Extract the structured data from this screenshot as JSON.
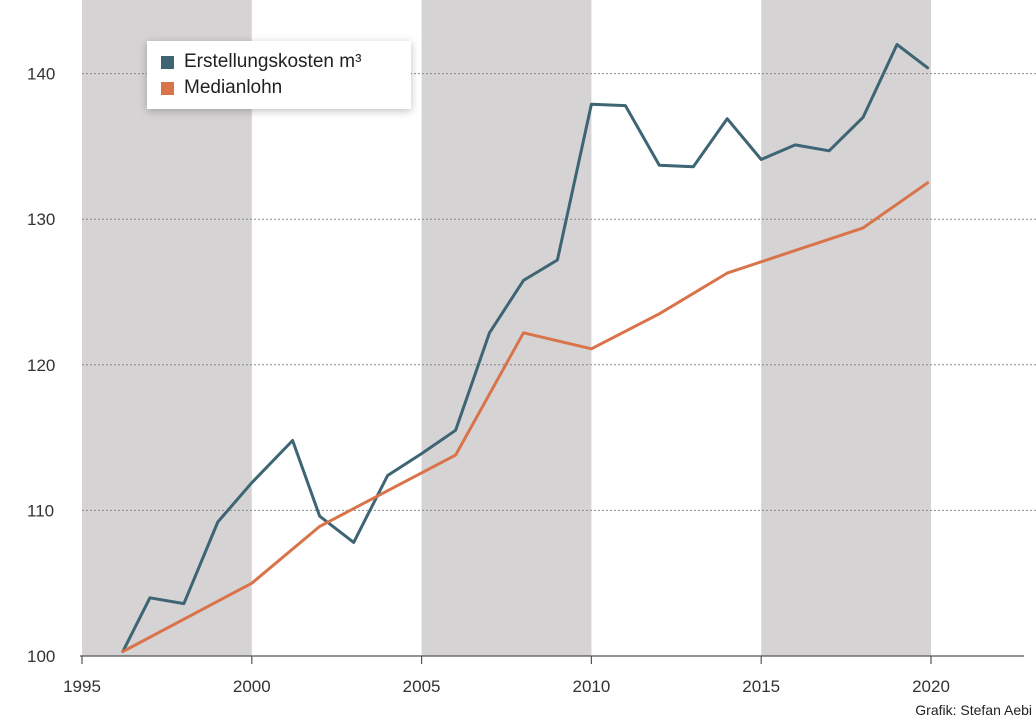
{
  "chart_data": {
    "type": "line",
    "title": "",
    "xlabel": "",
    "ylabel": "",
    "xlim": [
      1994.8,
      2022.5
    ],
    "ylim": [
      100,
      145
    ],
    "x_ticks": [
      1995,
      2000,
      2005,
      2010,
      2015,
      2020
    ],
    "x_tick_labels": [
      "1995",
      "2000",
      "2005",
      "2010",
      "2015",
      "2020"
    ],
    "y_ticks": [
      100,
      110,
      120,
      130,
      140
    ],
    "y_tick_labels": [
      "100",
      "110",
      "120",
      "130",
      "140"
    ],
    "grid": "horizontal dotted",
    "shaded_bands": [
      [
        1995,
        2000
      ],
      [
        2005,
        2010
      ],
      [
        2015,
        2020
      ]
    ],
    "legend": {
      "position": "top-left"
    },
    "series": [
      {
        "name": "Erstellungskosten m³",
        "color": "#3d6573",
        "x": [
          1996.2,
          1997,
          1998,
          1999,
          2000,
          2001.2,
          2002,
          2003,
          2004,
          2005,
          2006,
          2007,
          2008,
          2009,
          2010,
          2011,
          2012,
          2013,
          2014,
          2015,
          2016,
          2017,
          2018,
          2019,
          2019.9
        ],
        "y": [
          100.3,
          104.0,
          103.6,
          109.2,
          111.9,
          114.8,
          109.6,
          107.8,
          112.4,
          113.9,
          115.5,
          122.2,
          125.8,
          127.2,
          137.9,
          137.8,
          133.7,
          133.6,
          136.9,
          134.1,
          135.1,
          134.7,
          137.0,
          142.0,
          140.4
        ]
      },
      {
        "name": "Medianlohn",
        "color": "#d9744a",
        "x": [
          1996.2,
          2000,
          2002,
          2006,
          2008,
          2010,
          2012,
          2014,
          2018,
          2019.9
        ],
        "y": [
          100.3,
          105.0,
          108.9,
          113.8,
          122.2,
          121.1,
          123.5,
          126.3,
          129.4,
          132.5
        ]
      }
    ]
  },
  "credit": "Grafik: Stefan Aebi"
}
